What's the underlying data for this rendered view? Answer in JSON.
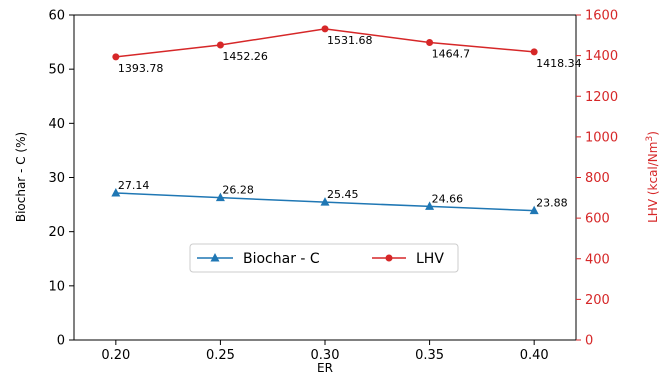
{
  "chart_data": {
    "type": "line",
    "x": [
      0.2,
      0.25,
      0.3,
      0.35,
      0.4
    ],
    "x_tick_labels": [
      "0.20",
      "0.25",
      "0.30",
      "0.35",
      "0.40"
    ],
    "xlabel": "ER",
    "y_left": {
      "label": "Biochar - C (%)",
      "range": [
        0,
        60
      ],
      "ticks": [
        "0",
        "10",
        "20",
        "30",
        "40",
        "50",
        "60"
      ]
    },
    "y_right": {
      "label_main": "LHV (kcal/Nm",
      "label_sup": "3",
      "label_close": ")",
      "range": [
        0,
        1600
      ],
      "ticks": [
        "0",
        "200",
        "400",
        "600",
        "800",
        "1000",
        "1200",
        "1400",
        "1600"
      ],
      "color": "#d62728"
    },
    "series": [
      {
        "name": "Biochar - C",
        "axis": "left",
        "color": "#1f77b4",
        "marker": "triangle",
        "values": [
          27.14,
          26.28,
          25.45,
          24.66,
          23.88
        ],
        "labels": [
          "27.14",
          "26.28",
          "25.45",
          "24.66",
          "23.88"
        ]
      },
      {
        "name": "LHV",
        "axis": "right",
        "color": "#d62728",
        "marker": "circle",
        "values": [
          1393.78,
          1452.26,
          1531.68,
          1464.7,
          1418.34
        ],
        "labels": [
          "1393.78",
          "1452.26",
          "1531.68",
          "1464.7",
          "1418.34"
        ]
      }
    ],
    "legend_position": "center"
  }
}
